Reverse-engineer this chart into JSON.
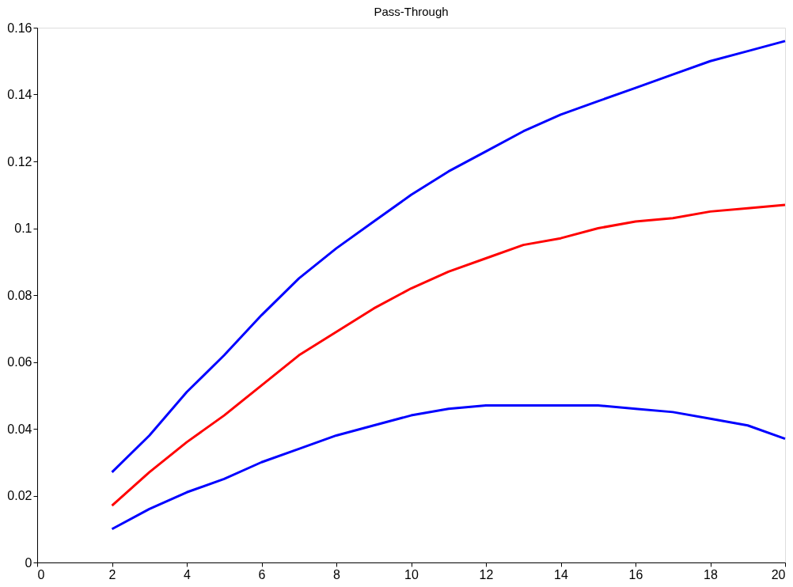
{
  "chart_data": {
    "type": "line",
    "title": "Pass-Through",
    "x": [
      2,
      3,
      4,
      5,
      6,
      7,
      8,
      9,
      10,
      11,
      12,
      13,
      14,
      15,
      16,
      17,
      18,
      19,
      20
    ],
    "series": [
      {
        "color": "#0000ff",
        "values": [
          0.027,
          0.038,
          0.051,
          0.062,
          0.074,
          0.085,
          0.094,
          0.102,
          0.11,
          0.117,
          0.123,
          0.129,
          0.134,
          0.138,
          0.142,
          0.146,
          0.15,
          0.153,
          0.156
        ]
      },
      {
        "color": "#ff0000",
        "values": [
          0.017,
          0.027,
          0.036,
          0.044,
          0.053,
          0.062,
          0.069,
          0.076,
          0.082,
          0.087,
          0.091,
          0.095,
          0.097,
          0.1,
          0.102,
          0.103,
          0.105,
          0.106,
          0.107
        ]
      },
      {
        "color": "#0000ff",
        "values": [
          0.01,
          0.016,
          0.021,
          0.025,
          0.03,
          0.034,
          0.038,
          0.041,
          0.044,
          0.046,
          0.047,
          0.047,
          0.047,
          0.047,
          0.046,
          0.045,
          0.043,
          0.041,
          0.037
        ]
      }
    ],
    "xlim": [
      0,
      20
    ],
    "xticks": [
      0,
      2,
      4,
      6,
      8,
      10,
      12,
      14,
      16,
      18,
      20
    ],
    "ylim": [
      0,
      0.16
    ],
    "yticks": [
      0,
      0.02,
      0.04,
      0.06,
      0.08,
      0.1,
      0.12,
      0.14,
      0.16
    ],
    "grid": false,
    "legend": false,
    "marker": "none",
    "line_style": "solid"
  }
}
